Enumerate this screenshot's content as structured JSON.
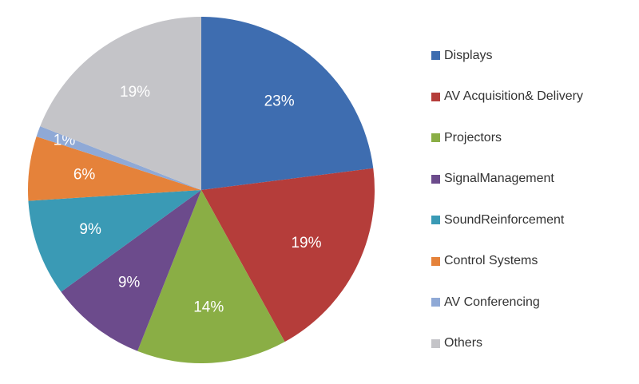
{
  "chart_data": {
    "type": "pie",
    "start_angle": "12 o'clock, clockwise",
    "legend_position": "right",
    "slices": [
      {
        "label": "Displays",
        "value": 23,
        "display": "23%",
        "color": "#3e6db0"
      },
      {
        "label": "AV Acquisition& Delivery",
        "value": 19,
        "display": "19%",
        "color": "#b53d3a"
      },
      {
        "label": "Projectors",
        "value": 14,
        "display": "14%",
        "color": "#8aae45"
      },
      {
        "label": "SignalManagement",
        "value": 9,
        "display": "9%",
        "color": "#6c4b8c"
      },
      {
        "label": "SoundReinforcement",
        "value": 9,
        "display": "9%",
        "color": "#3a9ab5"
      },
      {
        "label": "Control Systems",
        "value": 6,
        "display": "6%",
        "color": "#e5823a"
      },
      {
        "label": "AV Conferencing",
        "value": 1,
        "display": "1%",
        "color": "#8fa9d6"
      },
      {
        "label": "Others",
        "value": 19,
        "display": "19%",
        "color": "#c4c4c8"
      }
    ]
  }
}
